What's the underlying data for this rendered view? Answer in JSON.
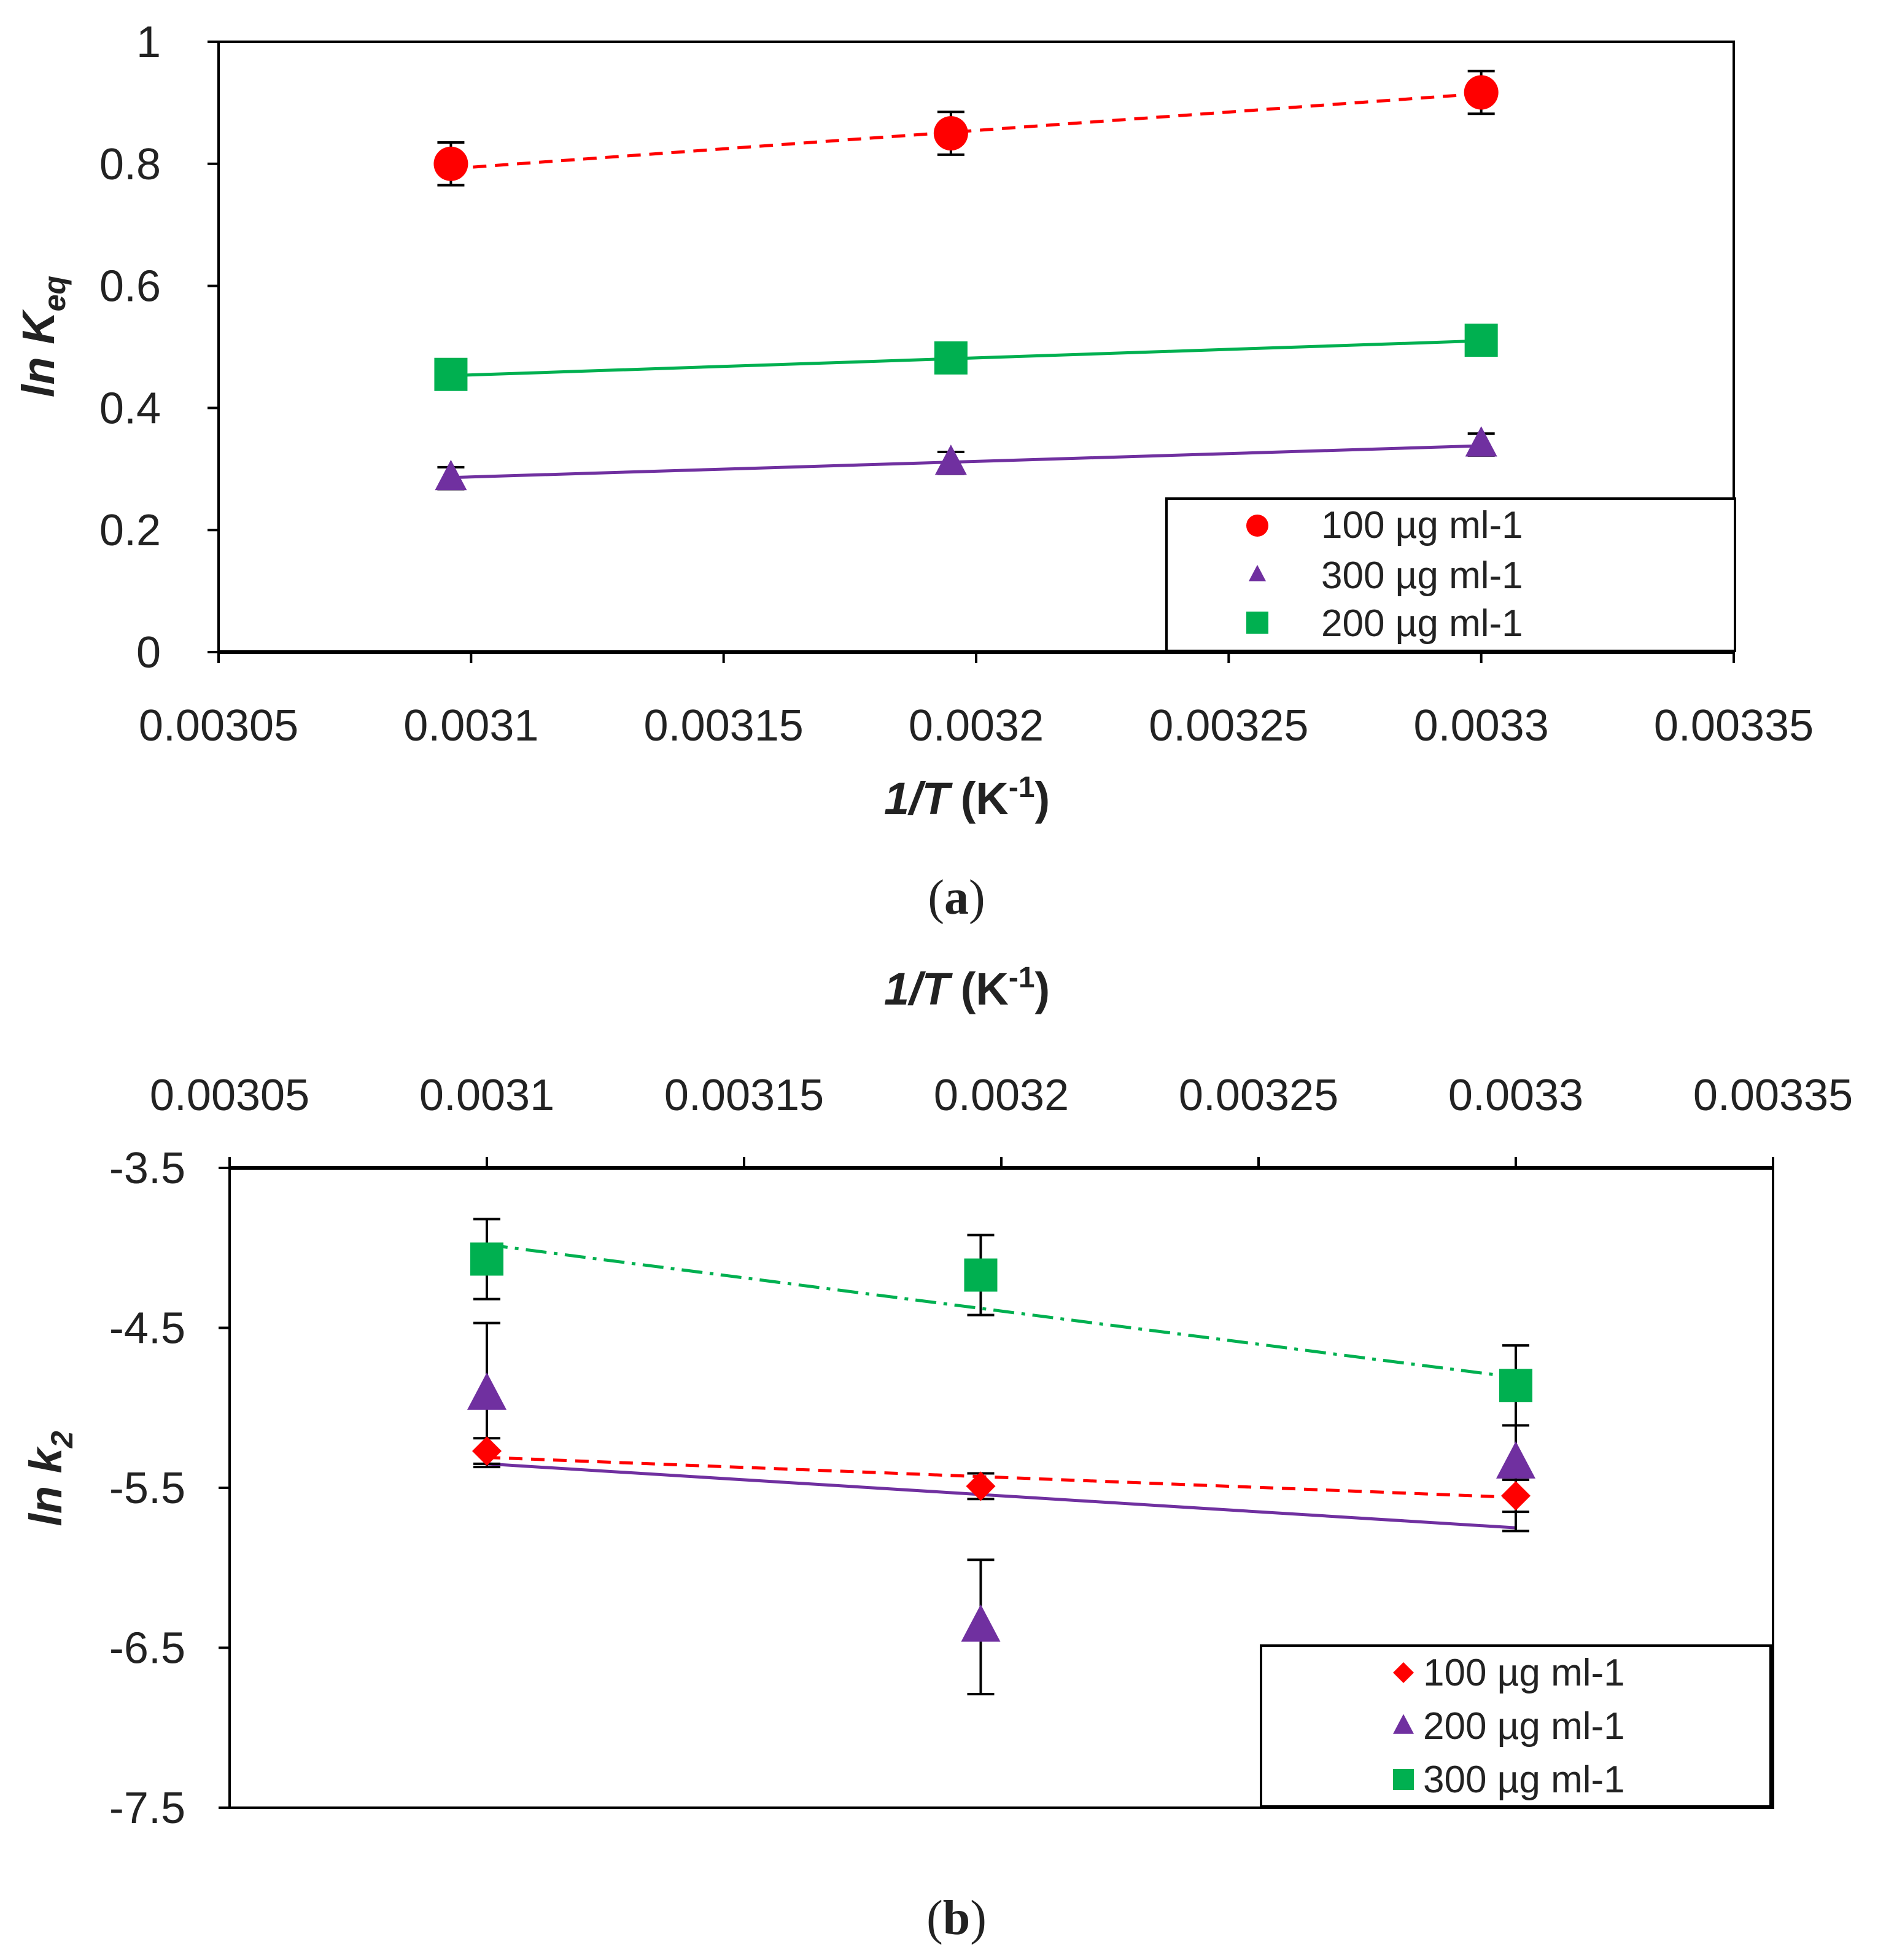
{
  "colors": {
    "red": "#ff0000",
    "purple": "#7030a0",
    "green": "#00b050",
    "axis": "#000000"
  },
  "panel_labels": {
    "a": "a",
    "b": "b"
  },
  "chart_data": [
    {
      "id": "a",
      "type": "scatter",
      "y_title": "ln K",
      "y_title_sub": "eq",
      "x_title": "1/T",
      "x_unit": "(K",
      "x_unit_sup": "-1",
      "x_unit_close": ")",
      "x_axis_position": "bottom",
      "xlim": [
        0.00305,
        0.00335
      ],
      "ylim": [
        0,
        1
      ],
      "x_ticks": [
        "0.00305",
        "0.0031",
        "0.00315",
        "0.0032",
        "0.00325",
        "0.0033",
        "0.00335"
      ],
      "y_ticks": [
        "0",
        "0.2",
        "0.4",
        "0.6",
        "0.8",
        "1"
      ],
      "legend_position": "bottom-right",
      "series": [
        {
          "name": "100 µg ml-1",
          "marker": "circle",
          "color": "#ff0000",
          "line": "dashed",
          "x": [
            0.003096,
            0.003195,
            0.0033
          ],
          "y": [
            0.8,
            0.85,
            0.917
          ],
          "err": [
            0.035,
            0.035,
            0.035
          ],
          "fit": [
            0.792,
            0.915
          ]
        },
        {
          "name": "300 µg ml-1",
          "marker": "triangle",
          "color": "#7030a0",
          "line": "solid",
          "x": [
            0.003096,
            0.003195,
            0.0033
          ],
          "y": [
            0.285,
            0.31,
            0.34
          ],
          "err": [
            0.018,
            0.018,
            0.018
          ],
          "fit": [
            0.286,
            0.338
          ]
        },
        {
          "name": "200 µg ml-1",
          "marker": "square",
          "color": "#00b050",
          "line": "solid",
          "x": [
            0.003096,
            0.003195,
            0.0033
          ],
          "y": [
            0.455,
            0.482,
            0.511
          ],
          "err": [
            0,
            0,
            0
          ],
          "fit": [
            0.453,
            0.51
          ]
        }
      ]
    },
    {
      "id": "b",
      "type": "scatter",
      "y_title": "ln k",
      "y_title_sub": "2",
      "x_title": "1/T",
      "x_unit": "(K",
      "x_unit_sup": "-1",
      "x_unit_close": ")",
      "x_axis_position": "top",
      "xlim": [
        0.00305,
        0.00335
      ],
      "ylim": [
        -7.5,
        -3.5
      ],
      "x_ticks": [
        "0.00305",
        "0.0031",
        "0.00315",
        "0.0032",
        "0.00325",
        "0.0033",
        "0.00335"
      ],
      "y_ticks": [
        "-7.5",
        "-6.5",
        "-5.5",
        "-4.5",
        "-3.5"
      ],
      "legend_position": "bottom-right",
      "series": [
        {
          "name": "100 µg ml-1",
          "marker": "diamond",
          "color": "#ff0000",
          "line": "dashed",
          "x": [
            0.0031,
            0.003196,
            0.0033
          ],
          "y": [
            -5.27,
            -5.49,
            -5.55
          ],
          "err": [
            0.08,
            0.08,
            0.1
          ],
          "fit": [
            -5.31,
            -5.56
          ]
        },
        {
          "name": "200 µg ml-1",
          "marker": "triangle",
          "color": "#7030a0",
          "line": "solid",
          "x": [
            0.0031,
            0.003196,
            0.0033
          ],
          "y": [
            -4.92,
            -6.37,
            -5.35
          ],
          "err": [
            0.45,
            0.42,
            0.42
          ],
          "fit": [
            -5.35,
            -5.75
          ]
        },
        {
          "name": "300 µg ml-1",
          "marker": "square",
          "color": "#00b050",
          "line": "dashdot",
          "x": [
            0.0031,
            0.003196,
            0.0033
          ],
          "y": [
            -4.07,
            -4.17,
            -4.86
          ],
          "err": [
            0.25,
            0.25,
            0.25
          ],
          "fit": [
            -3.98,
            -4.81
          ]
        }
      ]
    }
  ]
}
